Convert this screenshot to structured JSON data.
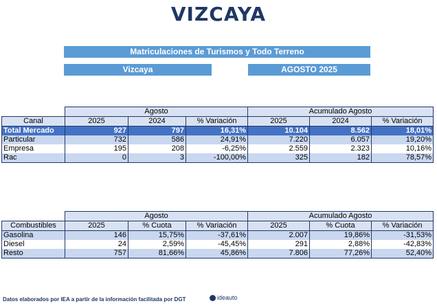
{
  "title": "VIZCAYA",
  "banners": {
    "subtitle": "Matriculaciones de Turismos y Todo Terreno",
    "region": "Vizcaya",
    "period": "AGOSTO 2025"
  },
  "table1": {
    "group_headers": [
      "Agosto",
      "Acumulado Agosto"
    ],
    "columns": [
      "Canal",
      "2025",
      "2024",
      "% Variación",
      "2025",
      "2024",
      "% Variación"
    ],
    "rows": [
      {
        "label": "Total Mercado",
        "cells": [
          "927",
          "797",
          "16,31%",
          "10.104",
          "8.562",
          "18,01%"
        ]
      },
      {
        "label": "Particular",
        "cells": [
          "732",
          "586",
          "24,91%",
          "7.220",
          "6.057",
          "19,20%"
        ]
      },
      {
        "label": "Empresa",
        "cells": [
          "195",
          "208",
          "-6,25%",
          "2.559",
          "2.323",
          "10,16%"
        ]
      },
      {
        "label": "Rac",
        "cells": [
          "0",
          "3",
          "-100,00%",
          "325",
          "182",
          "78,57%"
        ]
      }
    ]
  },
  "table2": {
    "group_headers": [
      "Agosto",
      "Acumulado Agosto"
    ],
    "columns": [
      "Combustibles",
      "2025",
      "% Cuota",
      "% Variación",
      "2025",
      "% Cuota",
      "% Variación"
    ],
    "rows": [
      {
        "label": "Gasolina",
        "cells": [
          "146",
          "15,75%",
          "-37,61%",
          "2.007",
          "19,86%",
          "-31,53%"
        ]
      },
      {
        "label": "Diesel",
        "cells": [
          "24",
          "2,59%",
          "-45,45%",
          "291",
          "2,88%",
          "-42,83%"
        ]
      },
      {
        "label": "Resto",
        "cells": [
          "757",
          "81,66%",
          "45,86%",
          "7.806",
          "77,26%",
          "52,40%"
        ]
      }
    ]
  },
  "footer": {
    "source": "Datos elaborados por IEA a partir de la información facilitada por DGT",
    "logo_text": "ideauto",
    "logo_icon": "ideauto-logo-icon"
  }
}
